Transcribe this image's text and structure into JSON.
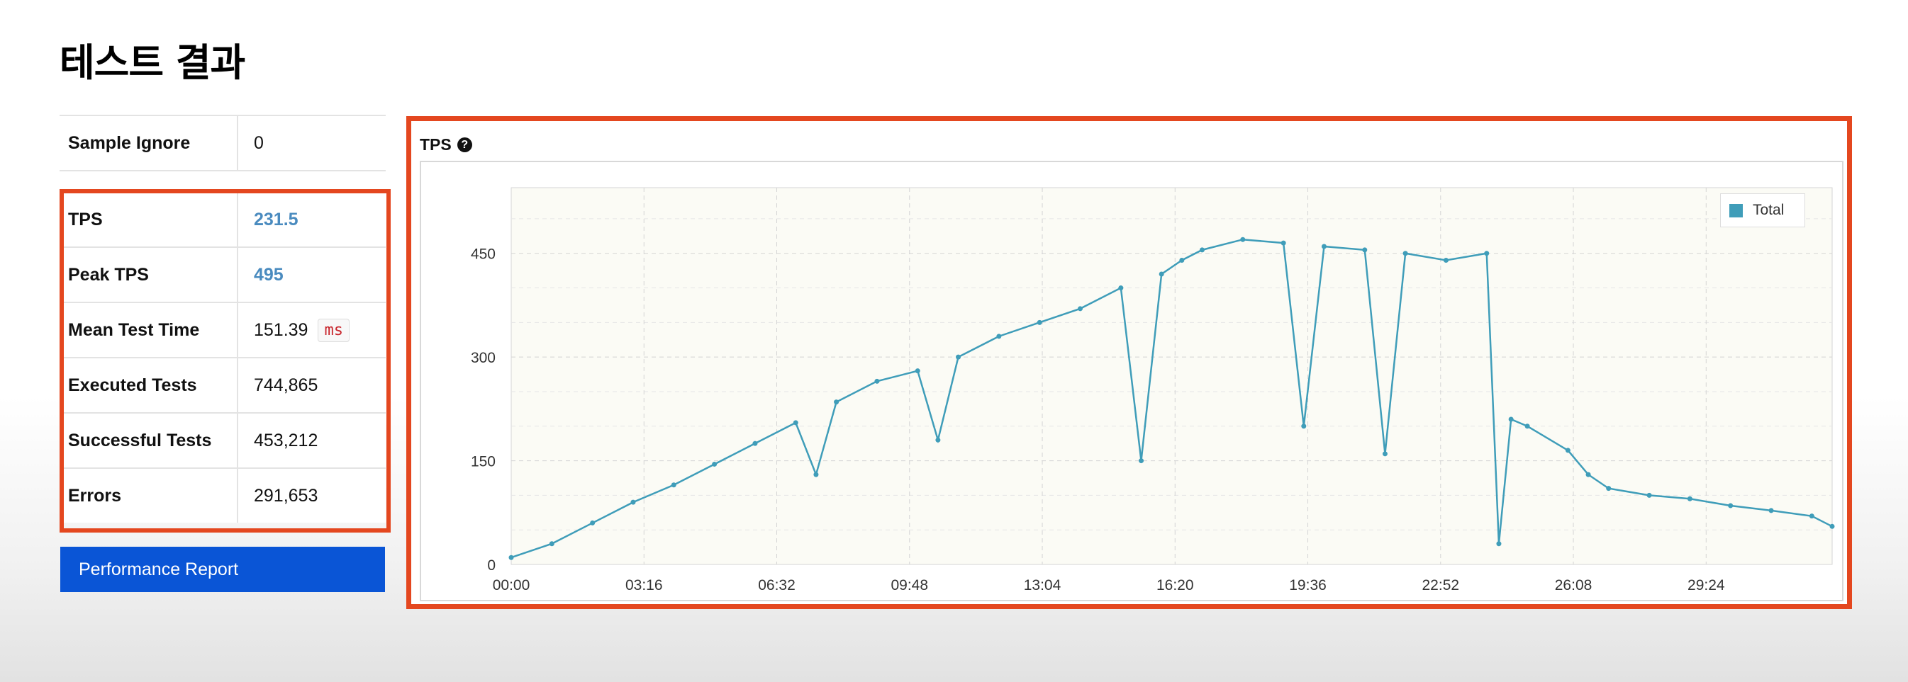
{
  "page": {
    "title": "테스트 결과"
  },
  "stats": {
    "sample_ignore": {
      "label": "Sample Ignore",
      "value": "0"
    },
    "tps": {
      "label": "TPS",
      "value": "231.5"
    },
    "peak_tps": {
      "label": "Peak TPS",
      "value": "495"
    },
    "mean_test_time": {
      "label": "Mean Test Time",
      "value": "151.39",
      "unit": "ms"
    },
    "executed_tests": {
      "label": "Executed Tests",
      "value": "744,865"
    },
    "successful_tests": {
      "label": "Successful Tests",
      "value": "453,212"
    },
    "errors": {
      "label": "Errors",
      "value": "291,653"
    }
  },
  "actions": {
    "performance_report": "Performance Report"
  },
  "colors": {
    "highlight": "#e4471f",
    "series": "#3f9db9",
    "button": "#0a55d6",
    "link": "#4a8bbf"
  },
  "chart_data": {
    "type": "line",
    "title": "TPS",
    "title_icon": "help-icon",
    "x_tick_labels": [
      "00:00",
      "03:16",
      "06:32",
      "09:48",
      "13:04",
      "16:20",
      "19:36",
      "22:52",
      "26:08",
      "29:24"
    ],
    "x_tick_minutes": [
      0,
      3.2667,
      6.5333,
      9.8,
      13.0667,
      16.3333,
      19.6,
      22.8667,
      26.1333,
      29.4
    ],
    "x_range_minutes": [
      0,
      32.5
    ],
    "y_ticks": [
      0,
      150,
      300,
      450
    ],
    "ylim": [
      0,
      545
    ],
    "grid": true,
    "legend_position": "top-right",
    "series": [
      {
        "name": "Total",
        "x_minutes": [
          0,
          1,
          2,
          3,
          4,
          5,
          6,
          7,
          7.5,
          8,
          9,
          10,
          10.5,
          11,
          12,
          13,
          14,
          15,
          15.5,
          16,
          16.5,
          17,
          18,
          19,
          19.5,
          20,
          21,
          21.5,
          22,
          23,
          24,
          24.3,
          24.6,
          25,
          26,
          26.5,
          27,
          28,
          29,
          30,
          31,
          32,
          32.5
        ],
        "values": [
          10,
          30,
          60,
          90,
          115,
          145,
          175,
          205,
          130,
          235,
          265,
          280,
          180,
          300,
          330,
          350,
          370,
          400,
          150,
          420,
          440,
          455,
          470,
          465,
          200,
          460,
          455,
          160,
          450,
          440,
          450,
          30,
          210,
          200,
          165,
          130,
          110,
          100,
          95,
          85,
          78,
          70,
          55
        ]
      }
    ]
  }
}
